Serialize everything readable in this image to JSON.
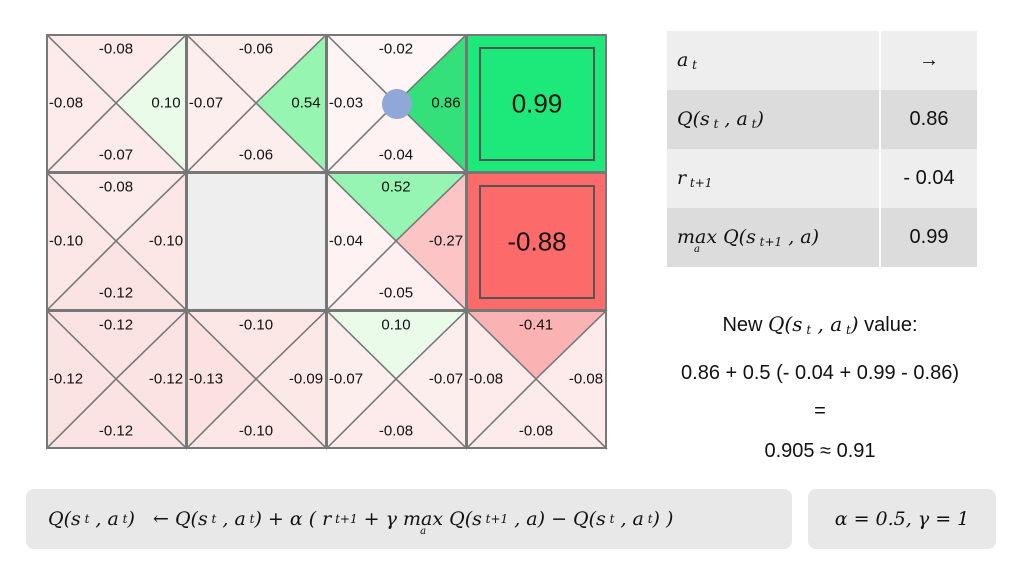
{
  "grid": {
    "rows": [
      [
        {
          "type": "q",
          "up": "-0.08",
          "left": "-0.08",
          "right": "0.10",
          "down": "-0.07",
          "colors": {
            "up": "#fdeaea",
            "left": "#fdeaea",
            "right": "#eafbea",
            "down": "#fdeaea"
          }
        },
        {
          "type": "q",
          "up": "-0.06",
          "left": "-0.07",
          "right": "0.54",
          "down": "-0.06",
          "colors": {
            "up": "#fdeeee",
            "left": "#fdeeee",
            "right": "#95f5b1",
            "down": "#fdeeee"
          }
        },
        {
          "type": "q",
          "up": "-0.02",
          "left": "-0.03",
          "right": "0.86",
          "down": "-0.04",
          "colors": {
            "up": "#fef6f6",
            "left": "#fef4f4",
            "right": "#33e07a",
            "down": "#fef2f2"
          },
          "agent": true
        },
        {
          "type": "terminal",
          "value": "0.99",
          "color": "#1de87a"
        }
      ],
      [
        {
          "type": "q",
          "up": "-0.08",
          "left": "-0.10",
          "right": "-0.10",
          "down": "-0.12",
          "colors": {
            "up": "#fdeaea",
            "left": "#fde6e6",
            "right": "#fde6e6",
            "down": "#fce3e3"
          }
        },
        {
          "type": "wall",
          "color": "#eeeeee"
        },
        {
          "type": "q",
          "up": "0.52",
          "left": "-0.04",
          "right": "-0.27",
          "down": "-0.05",
          "colors": {
            "up": "#97f5b3",
            "left": "#fef2f2",
            "right": "#fcc4c4",
            "down": "#fef0f0"
          }
        },
        {
          "type": "terminal",
          "value": "-0.88",
          "color": "#fc6a6a"
        }
      ],
      [
        {
          "type": "q",
          "up": "-0.12",
          "left": "-0.12",
          "right": "-0.12",
          "down": "-0.12",
          "colors": {
            "up": "#fce3e3",
            "left": "#fce3e3",
            "right": "#fce3e3",
            "down": "#fce3e3"
          }
        },
        {
          "type": "q",
          "up": "-0.10",
          "left": "-0.13",
          "right": "-0.09",
          "down": "-0.10",
          "colors": {
            "up": "#fde6e6",
            "left": "#fce1e1",
            "right": "#fde8e8",
            "down": "#fde6e6"
          }
        },
        {
          "type": "q",
          "up": "0.10",
          "left": "-0.07",
          "right": "-0.07",
          "down": "-0.08",
          "colors": {
            "up": "#eafbea",
            "left": "#fdeeee",
            "right": "#fdeeee",
            "down": "#fdeaea"
          }
        },
        {
          "type": "q",
          "up": "-0.41",
          "left": "-0.08",
          "right": "-0.08",
          "down": "-0.08",
          "colors": {
            "up": "#fbb2b2",
            "left": "#fdeaea",
            "right": "#fdeaea",
            "down": "#fdeaea"
          }
        }
      ]
    ]
  },
  "table": {
    "rows": [
      {
        "label_html": "a<span class='sub'>&nbsp;t</span>",
        "value": "→"
      },
      {
        "label_html": "Q(s<span class='sub'>&nbsp;t</span>&nbsp;, a<span class='sub'>&nbsp;t</span>)",
        "value": "0.86"
      },
      {
        "label_html": "r<span class='sub'>&nbsp;t+1</span>",
        "value": "- 0.04"
      },
      {
        "label_html": "<span class='maxop'>max<span class='under'>a</span></span>&nbsp;Q(s<span class='sub'>&nbsp;t+1</span>&nbsp;, a)",
        "value": "0.99"
      }
    ]
  },
  "update": {
    "prefix": "New",
    "suffix": "value:",
    "expression": "0.86 + 0.5 (- 0.04 + 0.99 - 0.86)",
    "equals": "=",
    "result": "0.905 ≈ 0.91"
  },
  "params": "α = 0.5,  γ = 1"
}
